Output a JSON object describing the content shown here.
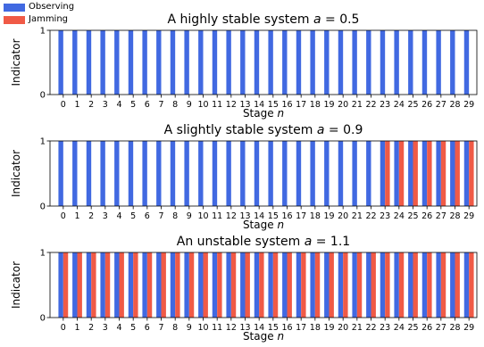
{
  "legend": {
    "items": [
      {
        "label": "Observing",
        "color": "#4169E1"
      },
      {
        "label": "Jamming",
        "color": "#F05A46"
      }
    ]
  },
  "chart_data": [
    {
      "type": "bar",
      "title": "A highly stable system a = 0.5",
      "title_prefix": "A highly stable system ",
      "title_var": "a",
      "title_suffix": " = 0.5",
      "xlabel_prefix": "Stage ",
      "xlabel_var": "n",
      "ylabel": "Indicator",
      "ylim": [
        0,
        1
      ],
      "yticks": [
        0,
        1
      ],
      "categories": [
        0,
        1,
        2,
        3,
        4,
        5,
        6,
        7,
        8,
        9,
        10,
        11,
        12,
        13,
        14,
        15,
        16,
        17,
        18,
        19,
        20,
        21,
        22,
        23,
        24,
        25,
        26,
        27,
        28,
        29
      ],
      "series": [
        {
          "name": "Observing",
          "values": [
            1,
            1,
            1,
            1,
            1,
            1,
            1,
            1,
            1,
            1,
            1,
            1,
            1,
            1,
            1,
            1,
            1,
            1,
            1,
            1,
            1,
            1,
            1,
            1,
            1,
            1,
            1,
            1,
            1,
            1
          ]
        },
        {
          "name": "Jamming",
          "values": [
            0,
            0,
            0,
            0,
            0,
            0,
            0,
            0,
            0,
            0,
            0,
            0,
            0,
            0,
            0,
            0,
            0,
            0,
            0,
            0,
            0,
            0,
            0,
            0,
            0,
            0,
            0,
            0,
            0,
            0
          ]
        }
      ]
    },
    {
      "type": "bar",
      "title": "A slightly stable system a = 0.9",
      "title_prefix": "A slightly stable system ",
      "title_var": "a",
      "title_suffix": " = 0.9",
      "xlabel_prefix": "Stage ",
      "xlabel_var": "n",
      "ylabel": "Indicator",
      "ylim": [
        0,
        1
      ],
      "yticks": [
        0,
        1
      ],
      "categories": [
        0,
        1,
        2,
        3,
        4,
        5,
        6,
        7,
        8,
        9,
        10,
        11,
        12,
        13,
        14,
        15,
        16,
        17,
        18,
        19,
        20,
        21,
        22,
        23,
        24,
        25,
        26,
        27,
        28,
        29
      ],
      "series": [
        {
          "name": "Observing",
          "values": [
            1,
            1,
            1,
            1,
            1,
            1,
            1,
            1,
            1,
            1,
            1,
            1,
            1,
            1,
            1,
            1,
            1,
            1,
            1,
            1,
            1,
            1,
            1,
            1,
            1,
            1,
            1,
            1,
            1,
            1
          ]
        },
        {
          "name": "Jamming",
          "values": [
            0,
            0,
            0,
            0,
            0,
            0,
            0,
            0,
            0,
            0,
            0,
            0,
            0,
            0,
            0,
            0,
            0,
            0,
            0,
            0,
            0,
            0,
            0,
            1,
            1,
            1,
            1,
            1,
            1,
            1
          ]
        }
      ]
    },
    {
      "type": "bar",
      "title": "An unstable system a = 1.1",
      "title_prefix": "An unstable system ",
      "title_var": "a",
      "title_suffix": " = 1.1",
      "xlabel_prefix": "Stage ",
      "xlabel_var": "n",
      "ylabel": "Indicator",
      "ylim": [
        0,
        1
      ],
      "yticks": [
        0,
        1
      ],
      "categories": [
        0,
        1,
        2,
        3,
        4,
        5,
        6,
        7,
        8,
        9,
        10,
        11,
        12,
        13,
        14,
        15,
        16,
        17,
        18,
        19,
        20,
        21,
        22,
        23,
        24,
        25,
        26,
        27,
        28,
        29
      ],
      "series": [
        {
          "name": "Observing",
          "values": [
            1,
            1,
            1,
            1,
            1,
            1,
            1,
            1,
            1,
            1,
            1,
            1,
            1,
            1,
            1,
            1,
            1,
            1,
            1,
            1,
            1,
            1,
            1,
            1,
            1,
            1,
            1,
            1,
            1,
            1
          ]
        },
        {
          "name": "Jamming",
          "values": [
            1,
            1,
            1,
            1,
            1,
            1,
            1,
            1,
            1,
            1,
            1,
            1,
            1,
            1,
            1,
            1,
            1,
            1,
            1,
            1,
            1,
            1,
            1,
            1,
            1,
            1,
            1,
            1,
            1,
            1
          ]
        }
      ]
    }
  ]
}
